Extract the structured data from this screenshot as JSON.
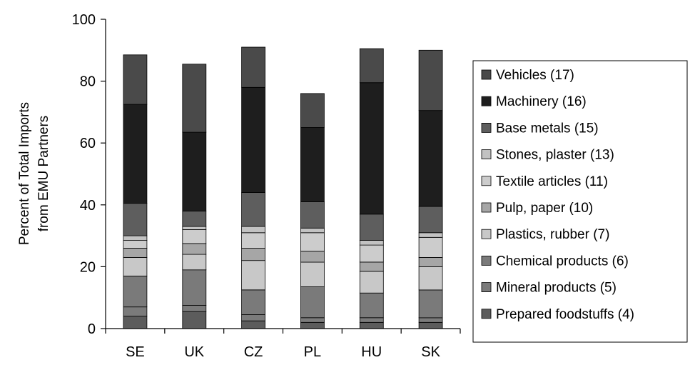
{
  "chart_data": {
    "type": "bar",
    "stacked": true,
    "title": "",
    "xlabel": "",
    "ylabel_lines": [
      "Percent of Total Imports",
      "from EMU Partners"
    ],
    "ylim": [
      0,
      100
    ],
    "yticks": [
      0,
      20,
      40,
      60,
      80,
      100
    ],
    "grid": false,
    "legend_position": "right",
    "categories": [
      "SE",
      "UK",
      "CZ",
      "PL",
      "HU",
      "SK"
    ],
    "series": [
      {
        "name": "Prepared foodstuffs (4)",
        "color": "#5c5c5c",
        "values": [
          4,
          5.5,
          2.5,
          2,
          2,
          2
        ]
      },
      {
        "name": "Mineral products (5)",
        "color": "#7b7b7b",
        "values": [
          3,
          2,
          2,
          1.5,
          1.5,
          1.5
        ]
      },
      {
        "name": "Chemical products (6)",
        "color": "#7a7a7a",
        "values": [
          10,
          11.5,
          8,
          10,
          8,
          9
        ]
      },
      {
        "name": "Plastics, rubber (7)",
        "color": "#c8c8c8",
        "values": [
          6,
          5,
          9.5,
          8,
          7,
          7.5
        ]
      },
      {
        "name": "Pulp, paper (10)",
        "color": "#a6a6a6",
        "values": [
          3,
          3.5,
          4,
          3.5,
          3,
          3
        ]
      },
      {
        "name": "Textile articles (11)",
        "color": "#cccccc",
        "values": [
          2.5,
          4.5,
          5,
          6,
          5.5,
          6.5
        ]
      },
      {
        "name": "Stones, plaster (13)",
        "color": "#c2c2c2",
        "values": [
          1.5,
          1,
          2,
          1.5,
          1.5,
          1.5
        ]
      },
      {
        "name": "Base metals (15)",
        "color": "#5e5e5e",
        "values": [
          10.5,
          5,
          11,
          8.5,
          8.5,
          8.5
        ]
      },
      {
        "name": "Machinery (16)",
        "color": "#1e1e1e",
        "values": [
          32,
          25.5,
          34,
          24,
          42.5,
          31
        ]
      },
      {
        "name": "Vehicles (17)",
        "color": "#4a4a4a",
        "values": [
          16,
          22,
          13,
          11,
          11,
          19.5
        ]
      }
    ]
  }
}
